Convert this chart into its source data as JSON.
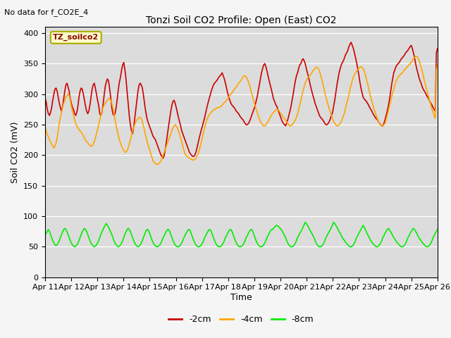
{
  "title": "Tonzi Soil CO2 Profile: Open (East) CO2",
  "no_data_text": "No data for f_CO2E_4",
  "annotation_text": "TZ_soilco2",
  "ylabel": "Soil CO2 (mV)",
  "xlabel": "Time",
  "ylim": [
    0,
    410
  ],
  "yticks": [
    0,
    50,
    100,
    150,
    200,
    250,
    300,
    350,
    400
  ],
  "bg_color": "#dcdcdc",
  "fig_bg_color": "#f5f5f5",
  "line_colors": [
    "#cc0000",
    "#ffa500",
    "#00ee00"
  ],
  "line_labels": [
    "-2cm",
    "-4cm",
    "-8cm"
  ],
  "line_width": 1.2,
  "x_tick_labels": [
    "Apr 11",
    "Apr 12",
    "Apr 13",
    "Apr 14",
    "Apr 15",
    "Apr 16",
    "Apr 17",
    "Apr 18",
    "Apr 19",
    "Apr 20",
    "Apr 21",
    "Apr 22",
    "Apr 23",
    "Apr 24",
    "Apr 25",
    "Apr 26"
  ],
  "n_days": 15,
  "red_data": [
    293,
    287,
    275,
    268,
    265,
    270,
    278,
    290,
    300,
    308,
    310,
    305,
    295,
    285,
    278,
    272,
    280,
    292,
    305,
    315,
    318,
    312,
    305,
    293,
    285,
    278,
    275,
    268,
    265,
    270,
    280,
    295,
    305,
    310,
    308,
    300,
    290,
    280,
    272,
    268,
    272,
    282,
    295,
    308,
    315,
    318,
    310,
    300,
    290,
    282,
    268,
    265,
    270,
    282,
    298,
    312,
    320,
    325,
    322,
    310,
    295,
    278,
    268,
    265,
    268,
    278,
    292,
    308,
    320,
    328,
    340,
    348,
    352,
    340,
    325,
    305,
    285,
    265,
    250,
    240,
    235,
    245,
    260,
    275,
    290,
    305,
    315,
    318,
    315,
    310,
    298,
    285,
    272,
    262,
    255,
    250,
    245,
    240,
    235,
    230,
    228,
    225,
    220,
    215,
    210,
    205,
    200,
    198,
    195,
    200,
    210,
    222,
    235,
    248,
    260,
    272,
    282,
    288,
    290,
    285,
    278,
    270,
    262,
    255,
    248,
    240,
    235,
    230,
    225,
    220,
    215,
    210,
    205,
    202,
    200,
    198,
    198,
    200,
    205,
    212,
    220,
    228,
    235,
    242,
    248,
    255,
    262,
    270,
    278,
    285,
    292,
    298,
    305,
    310,
    315,
    318,
    320,
    322,
    325,
    328,
    330,
    332,
    335,
    330,
    325,
    318,
    310,
    302,
    295,
    290,
    285,
    282,
    280,
    278,
    275,
    272,
    270,
    268,
    265,
    262,
    260,
    258,
    255,
    252,
    250,
    250,
    252,
    255,
    260,
    265,
    270,
    275,
    280,
    288,
    295,
    305,
    315,
    325,
    335,
    342,
    348,
    350,
    345,
    338,
    330,
    322,
    315,
    308,
    300,
    292,
    288,
    283,
    280,
    275,
    270,
    265,
    260,
    255,
    252,
    250,
    248,
    252,
    258,
    265,
    272,
    280,
    290,
    300,
    312,
    322,
    330,
    335,
    342,
    348,
    350,
    355,
    358,
    355,
    350,
    342,
    335,
    328,
    320,
    312,
    305,
    298,
    292,
    285,
    280,
    275,
    270,
    265,
    262,
    260,
    258,
    255,
    252,
    250,
    250,
    252,
    255,
    260,
    265,
    270,
    280,
    290,
    302,
    315,
    325,
    335,
    342,
    348,
    352,
    355,
    360,
    365,
    368,
    372,
    378,
    382,
    385,
    380,
    375,
    368,
    360,
    352,
    342,
    332,
    320,
    310,
    302,
    295,
    292,
    290,
    288,
    285,
    282,
    278,
    275,
    272,
    268,
    265,
    262,
    260,
    258,
    255,
    252,
    250,
    248,
    248,
    252,
    258,
    265,
    272,
    280,
    290,
    302,
    315,
    325,
    335,
    340,
    345,
    348,
    350,
    352,
    355,
    358,
    360,
    362,
    365,
    368,
    370,
    372,
    375,
    378,
    380,
    375,
    368,
    360,
    350,
    342,
    335,
    328,
    322,
    318,
    312,
    308,
    305,
    302,
    298,
    295,
    292,
    288,
    285,
    282,
    278,
    275,
    272,
    368,
    375
  ],
  "orange_data": [
    245,
    240,
    234,
    230,
    225,
    222,
    218,
    215,
    212,
    215,
    220,
    228,
    240,
    252,
    262,
    270,
    278,
    285,
    290,
    295,
    298,
    300,
    298,
    290,
    280,
    272,
    265,
    258,
    252,
    248,
    245,
    242,
    240,
    238,
    235,
    232,
    228,
    225,
    222,
    220,
    218,
    216,
    215,
    215,
    218,
    222,
    228,
    235,
    242,
    250,
    258,
    265,
    272,
    278,
    282,
    285,
    288,
    290,
    292,
    293,
    290,
    285,
    278,
    268,
    258,
    248,
    240,
    232,
    225,
    220,
    215,
    210,
    208,
    205,
    205,
    207,
    212,
    218,
    225,
    232,
    240,
    245,
    250,
    255,
    258,
    260,
    262,
    262,
    260,
    255,
    248,
    240,
    232,
    225,
    218,
    212,
    207,
    200,
    195,
    190,
    188,
    186,
    185,
    185,
    186,
    188,
    190,
    195,
    200,
    205,
    210,
    215,
    220,
    225,
    230,
    235,
    240,
    245,
    248,
    250,
    248,
    245,
    240,
    235,
    228,
    222,
    215,
    208,
    202,
    200,
    198,
    196,
    195,
    194,
    193,
    192,
    192,
    193,
    195,
    198,
    202,
    208,
    215,
    222,
    230,
    238,
    245,
    252,
    258,
    262,
    266,
    268,
    270,
    272,
    274,
    275,
    276,
    277,
    278,
    278,
    279,
    280,
    282,
    284,
    286,
    288,
    290,
    292,
    295,
    298,
    300,
    302,
    305,
    308,
    310,
    312,
    315,
    318,
    320,
    322,
    325,
    328,
    330,
    330,
    328,
    325,
    320,
    315,
    308,
    302,
    295,
    288,
    282,
    276,
    270,
    265,
    260,
    255,
    252,
    250,
    248,
    248,
    250,
    252,
    255,
    258,
    262,
    265,
    268,
    270,
    272,
    274,
    275,
    275,
    273,
    270,
    268,
    265,
    262,
    260,
    258,
    255,
    252,
    250,
    248,
    248,
    250,
    252,
    255,
    258,
    262,
    268,
    275,
    282,
    290,
    298,
    305,
    312,
    318,
    322,
    326,
    328,
    330,
    332,
    335,
    338,
    340,
    342,
    344,
    344,
    342,
    338,
    332,
    325,
    318,
    310,
    302,
    295,
    288,
    282,
    276,
    270,
    265,
    260,
    255,
    252,
    250,
    248,
    248,
    250,
    252,
    255,
    260,
    265,
    270,
    278,
    285,
    292,
    300,
    308,
    315,
    322,
    328,
    332,
    335,
    338,
    340,
    342,
    344,
    345,
    344,
    342,
    338,
    332,
    325,
    318,
    310,
    302,
    295,
    288,
    282,
    275,
    270,
    265,
    260,
    255,
    252,
    250,
    248,
    248,
    250,
    252,
    258,
    265,
    272,
    280,
    288,
    295,
    302,
    308,
    315,
    320,
    325,
    328,
    330,
    332,
    334,
    335,
    338,
    340,
    342,
    344,
    346,
    348,
    350,
    352,
    355,
    358,
    360,
    362,
    362,
    360,
    356,
    350,
    344,
    338,
    330,
    322,
    315,
    308,
    302,
    295,
    288,
    282,
    275,
    270,
    265,
    260,
    340,
    348
  ],
  "green_data": [
    70,
    72,
    75,
    78,
    75,
    70,
    65,
    60,
    56,
    53,
    52,
    53,
    56,
    60,
    65,
    70,
    74,
    78,
    80,
    78,
    75,
    70,
    65,
    60,
    56,
    53,
    51,
    50,
    51,
    53,
    56,
    60,
    65,
    70,
    74,
    78,
    80,
    78,
    75,
    70,
    65,
    60,
    56,
    53,
    51,
    50,
    51,
    53,
    56,
    60,
    65,
    70,
    74,
    78,
    82,
    85,
    88,
    85,
    82,
    78,
    74,
    70,
    65,
    60,
    56,
    53,
    51,
    50,
    51,
    53,
    56,
    60,
    65,
    70,
    74,
    78,
    80,
    78,
    75,
    70,
    65,
    60,
    56,
    53,
    51,
    50,
    51,
    53,
    56,
    60,
    65,
    70,
    74,
    78,
    78,
    75,
    70,
    65,
    60,
    56,
    53,
    51,
    50,
    50,
    51,
    53,
    56,
    60,
    65,
    68,
    72,
    75,
    78,
    78,
    75,
    70,
    65,
    60,
    56,
    53,
    51,
    50,
    50,
    51,
    53,
    56,
    60,
    65,
    68,
    72,
    75,
    78,
    78,
    75,
    70,
    65,
    60,
    56,
    53,
    51,
    50,
    50,
    51,
    53,
    56,
    60,
    65,
    68,
    72,
    75,
    78,
    78,
    75,
    70,
    65,
    60,
    56,
    53,
    51,
    50,
    50,
    51,
    53,
    56,
    60,
    65,
    68,
    72,
    75,
    78,
    78,
    75,
    70,
    65,
    60,
    56,
    53,
    51,
    50,
    50,
    51,
    53,
    56,
    60,
    65,
    68,
    72,
    75,
    78,
    78,
    75,
    70,
    65,
    60,
    56,
    53,
    51,
    50,
    50,
    51,
    53,
    56,
    60,
    65,
    68,
    72,
    75,
    78,
    78,
    80,
    82,
    84,
    85,
    84,
    82,
    80,
    78,
    75,
    72,
    68,
    65,
    60,
    56,
    53,
    51,
    50,
    50,
    51,
    53,
    56,
    60,
    65,
    68,
    72,
    75,
    78,
    82,
    86,
    90,
    88,
    85,
    82,
    78,
    75,
    72,
    68,
    65,
    60,
    56,
    53,
    51,
    50,
    50,
    51,
    53,
    56,
    60,
    65,
    68,
    72,
    75,
    78,
    82,
    86,
    90,
    88,
    85,
    82,
    78,
    75,
    72,
    68,
    65,
    62,
    60,
    57,
    55,
    53,
    51,
    50,
    50,
    51,
    53,
    56,
    60,
    65,
    68,
    72,
    75,
    78,
    82,
    85,
    82,
    78,
    74,
    70,
    67,
    63,
    60,
    57,
    55,
    53,
    51,
    50,
    50,
    51,
    53,
    56,
    60,
    65,
    68,
    72,
    75,
    78,
    80,
    78,
    75,
    72,
    68,
    65,
    62,
    60,
    57,
    55,
    53,
    51,
    50,
    50,
    51,
    53,
    56,
    60,
    65,
    68,
    72,
    75,
    78,
    80,
    78,
    75,
    72,
    68,
    65,
    62,
    60,
    57,
    55,
    53,
    51,
    50,
    50,
    51,
    53,
    56,
    60,
    65,
    68,
    72,
    75,
    78
  ]
}
